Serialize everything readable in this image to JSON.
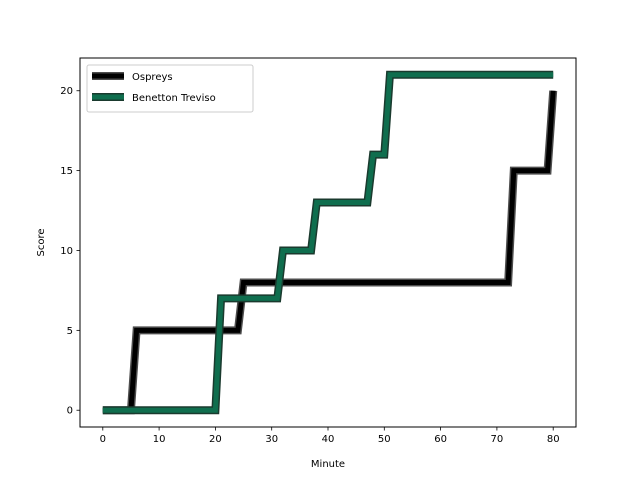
{
  "chart_data": {
    "type": "line",
    "xlabel": "Minute",
    "ylabel": "Score",
    "xlim": [
      -4.05,
      84.05
    ],
    "ylim": [
      -1.05,
      22.05
    ],
    "xticks": [
      0,
      10,
      20,
      30,
      40,
      50,
      60,
      70,
      80
    ],
    "yticks": [
      0,
      5,
      10,
      15,
      20
    ],
    "grid": false,
    "legend_position": "upper left",
    "series": [
      {
        "name": "Ospreys",
        "color": "#000000",
        "outline": "#4d4d4d",
        "x": [
          0,
          5,
          6,
          24,
          25,
          72,
          73,
          79,
          80
        ],
        "y": [
          0,
          0,
          5,
          5,
          8,
          8,
          15,
          15,
          20
        ]
      },
      {
        "name": "Benetton Treviso",
        "color": "#0f6e4e",
        "outline": "#1a3a2e",
        "x": [
          0,
          20,
          21,
          31,
          32,
          37,
          38,
          47,
          48,
          50,
          51,
          80
        ],
        "y": [
          0,
          0,
          7,
          7,
          10,
          10,
          13,
          13,
          16,
          16,
          21,
          21
        ]
      }
    ]
  }
}
